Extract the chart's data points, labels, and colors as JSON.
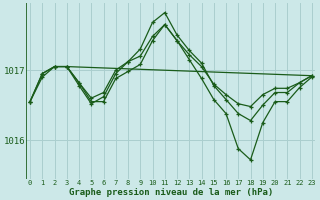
{
  "bg_color": "#cce8e8",
  "grid_color": "#aacece",
  "line_color": "#1a5c1a",
  "xlabel": "Graphe pression niveau de la mer (hPa)",
  "xticks": [
    0,
    1,
    2,
    3,
    4,
    5,
    6,
    7,
    8,
    9,
    10,
    11,
    12,
    13,
    14,
    15,
    16,
    17,
    18,
    19,
    20,
    21,
    22,
    23
  ],
  "yticks": [
    1016.0,
    1017.0
  ],
  "ylim": [
    1015.45,
    1017.95
  ],
  "xlim": [
    -0.3,
    23.3
  ],
  "series": [
    {
      "x": [
        3,
        23
      ],
      "y": [
        1017.05,
        1016.92
      ],
      "marker": false
    },
    {
      "x": [
        0,
        1,
        2,
        3,
        4,
        5,
        6,
        7,
        8,
        9,
        10,
        11,
        12,
        13,
        14,
        15,
        16,
        17,
        18,
        19,
        20,
        21,
        22,
        23
      ],
      "y": [
        1016.55,
        1016.9,
        1017.05,
        1017.05,
        1016.82,
        1016.6,
        1016.68,
        1017.0,
        1017.12,
        1017.2,
        1017.48,
        1017.65,
        1017.42,
        1017.22,
        1017.05,
        1016.8,
        1016.65,
        1016.52,
        1016.48,
        1016.65,
        1016.74,
        1016.74,
        1016.82,
        1016.92
      ],
      "marker": true
    },
    {
      "x": [
        0,
        1,
        2,
        3,
        4,
        5,
        6,
        7,
        8,
        9,
        10,
        11,
        12,
        13,
        14,
        15,
        16,
        17,
        18,
        19,
        20,
        21,
        22,
        23
      ],
      "y": [
        1016.55,
        1016.95,
        1017.05,
        1017.05,
        1016.78,
        1016.52,
        1016.62,
        1016.95,
        1017.12,
        1017.3,
        1017.68,
        1017.82,
        1017.5,
        1017.28,
        1017.1,
        1016.78,
        1016.58,
        1016.38,
        1016.28,
        1016.5,
        1016.68,
        1016.68,
        1016.82,
        1016.92
      ],
      "marker": true
    },
    {
      "x": [
        0,
        1,
        2,
        3,
        4,
        5,
        6,
        7,
        8,
        9,
        10,
        11,
        12,
        13,
        14,
        15,
        16,
        17,
        18,
        19,
        20,
        21,
        22,
        23
      ],
      "y": [
        1016.55,
        1016.95,
        1017.05,
        1017.05,
        1016.82,
        1016.55,
        1016.55,
        1016.88,
        1016.98,
        1017.08,
        1017.42,
        1017.65,
        1017.42,
        1017.15,
        1016.88,
        1016.58,
        1016.38,
        1015.88,
        1015.72,
        1016.25,
        1016.55,
        1016.55,
        1016.75,
        1016.9
      ],
      "marker": true
    }
  ]
}
